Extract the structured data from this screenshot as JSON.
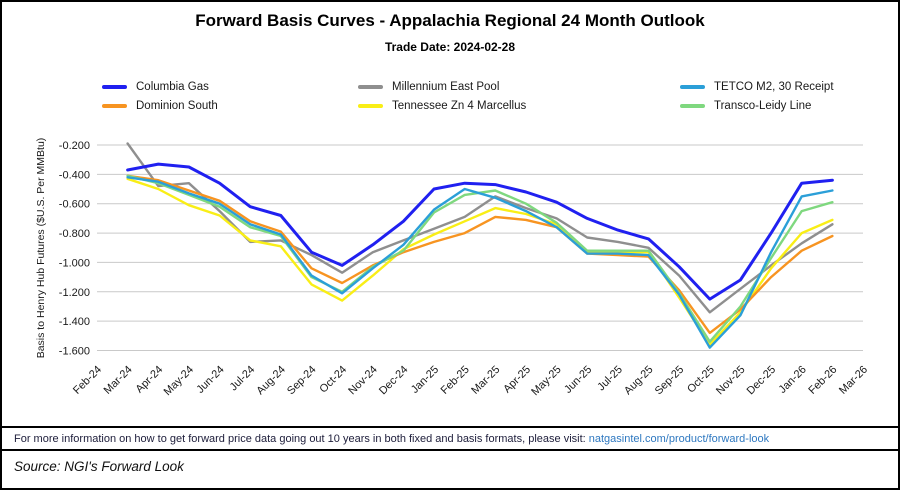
{
  "header": {
    "title": "Forward Basis Curves - Appalachia Regional 24 Month Outlook",
    "subtitle": "Trade Date: 2024-02-28"
  },
  "chart_data": {
    "type": "line",
    "title": "Forward Basis Curves - Appalachia Regional 24 Month Outlook",
    "subtitle": "Trade Date: 2024-02-28",
    "xlabel": "",
    "ylabel": "Basis to Henry Hub Futures ($U.S. Per MMBtu)",
    "legend_position": "top",
    "grid": "horizontal-only",
    "grid_color": "#c9c9c9",
    "y_ticks": [
      -0.2,
      -0.4,
      -0.6,
      -0.8,
      -1.0,
      -1.2,
      -1.4,
      -1.6
    ],
    "ylim": [
      -1.65,
      -0.15
    ],
    "tick_label_rotation": 45,
    "categories": [
      "Feb-24",
      "Mar-24",
      "Apr-24",
      "May-24",
      "Jun-24",
      "Jul-24",
      "Aug-24",
      "Sep-24",
      "Oct-24",
      "Nov-24",
      "Dec-24",
      "Jan-25",
      "Feb-25",
      "Mar-25",
      "Apr-25",
      "May-25",
      "Jun-25",
      "Jul-25",
      "Aug-25",
      "Sep-25",
      "Oct-25",
      "Nov-25",
      "Dec-25",
      "Jan-26",
      "Feb-26",
      "Mar-26"
    ],
    "series": [
      {
        "name": "Columbia Gas",
        "color": "#2020f0",
        "values": [
          null,
          -0.37,
          -0.33,
          -0.35,
          -0.46,
          -0.62,
          -0.68,
          -0.93,
          -1.02,
          -0.88,
          -0.72,
          -0.5,
          -0.46,
          -0.47,
          -0.52,
          -0.59,
          -0.7,
          -0.78,
          -0.84,
          -1.03,
          -1.25,
          -1.12,
          -0.8,
          -0.46,
          -0.44,
          null
        ]
      },
      {
        "name": "Millennium East Pool",
        "color": "#8f8f8f",
        "values": [
          null,
          -0.19,
          -0.48,
          -0.46,
          -0.65,
          -0.86,
          -0.85,
          -0.95,
          -1.07,
          -0.93,
          -0.85,
          -0.77,
          -0.69,
          -0.55,
          -0.63,
          -0.7,
          -0.83,
          -0.86,
          -0.9,
          -1.09,
          -1.34,
          -1.18,
          -1.02,
          -0.87,
          -0.74,
          null
        ]
      },
      {
        "name": "TETCO M2, 30 Receipt",
        "color": "#2b9fd8",
        "values": [
          null,
          -0.42,
          -0.45,
          -0.53,
          -0.6,
          -0.74,
          -0.81,
          -1.09,
          -1.21,
          -1.04,
          -0.88,
          -0.64,
          -0.5,
          -0.56,
          -0.65,
          -0.76,
          -0.94,
          -0.94,
          -0.95,
          -1.22,
          -1.58,
          -1.36,
          -0.93,
          -0.55,
          -0.51,
          null
        ]
      },
      {
        "name": "Dominion South",
        "color": "#f79421",
        "values": [
          null,
          -0.41,
          -0.44,
          -0.51,
          -0.58,
          -0.72,
          -0.79,
          -1.04,
          -1.14,
          -1.02,
          -0.93,
          -0.86,
          -0.8,
          -0.69,
          -0.71,
          -0.76,
          -0.94,
          -0.95,
          -0.96,
          -1.19,
          -1.48,
          -1.32,
          -1.1,
          -0.92,
          -0.82,
          null
        ]
      },
      {
        "name": "Tennessee Zn 4 Marcellus",
        "color": "#f9ee16",
        "values": [
          null,
          -0.43,
          -0.5,
          -0.61,
          -0.68,
          -0.85,
          -0.89,
          -1.15,
          -1.26,
          -1.09,
          -0.91,
          -0.81,
          -0.72,
          -0.63,
          -0.67,
          -0.74,
          -0.93,
          -0.93,
          -0.93,
          -1.24,
          -1.56,
          -1.34,
          -1.04,
          -0.8,
          -0.71,
          null
        ]
      },
      {
        "name": "Transco-Leidy Line",
        "color": "#7fd87f",
        "values": [
          null,
          -0.41,
          -0.46,
          -0.54,
          -0.62,
          -0.76,
          -0.82,
          -1.1,
          -1.2,
          -1.03,
          -0.92,
          -0.66,
          -0.54,
          -0.51,
          -0.6,
          -0.73,
          -0.92,
          -0.92,
          -0.92,
          -1.21,
          -1.54,
          -1.3,
          -0.97,
          -0.65,
          -0.59,
          null
        ]
      }
    ]
  },
  "footer": {
    "info_text": "For more information on how to get forward price data going out 10 years in both fixed and basis formats, please visit: ",
    "info_link": "natgasintel.com/product/forward-look",
    "source": "Source: NGI's Forward Look"
  }
}
